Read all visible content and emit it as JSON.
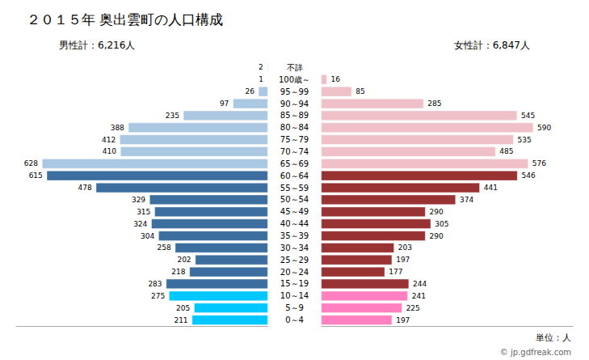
{
  "chart_data": {
    "type": "bar",
    "orientation": "horizontal",
    "title": "２０１５年 奥出雲町の人口構成",
    "categories": [
      "不詳",
      "100歳～",
      "95～99",
      "90～94",
      "85～89",
      "80～84",
      "75～79",
      "70～74",
      "65～69",
      "60～64",
      "55～59",
      "50～54",
      "45～49",
      "40～44",
      "35～39",
      "30～34",
      "25～29",
      "20～24",
      "15～19",
      "10～14",
      "5～9",
      "0～4"
    ],
    "series": [
      {
        "name": "男性計：6,216人",
        "values": [
          2,
          1,
          26,
          97,
          235,
          388,
          412,
          410,
          628,
          615,
          478,
          329,
          315,
          324,
          304,
          258,
          202,
          218,
          283,
          275,
          205,
          211
        ],
        "colors": [
          "#abc8e2",
          "#abc8e2",
          "#abc8e2",
          "#abc8e2",
          "#abc8e2",
          "#abc8e2",
          "#abc8e2",
          "#abc8e2",
          "#abc8e2",
          "#3c6fa0",
          "#3c6fa0",
          "#3c6fa0",
          "#3c6fa0",
          "#3c6fa0",
          "#3c6fa0",
          "#3c6fa0",
          "#3c6fa0",
          "#3c6fa0",
          "#3c6fa0",
          "#00c8ff",
          "#00c8ff",
          "#00c8ff"
        ]
      },
      {
        "name": "女性計：6,847人",
        "values": [
          0,
          16,
          85,
          285,
          545,
          590,
          535,
          485,
          576,
          546,
          441,
          374,
          290,
          305,
          290,
          203,
          197,
          177,
          244,
          241,
          225,
          197
        ],
        "colors": [
          "#f0c0c8",
          "#f0c0c8",
          "#f0c0c8",
          "#f0c0c8",
          "#f0c0c8",
          "#f0c0c8",
          "#f0c0c8",
          "#f0c0c8",
          "#f0c0c8",
          "#993333",
          "#993333",
          "#993333",
          "#993333",
          "#993333",
          "#993333",
          "#993333",
          "#993333",
          "#993333",
          "#993333",
          "#ff80c0",
          "#ff80c0",
          "#ff80c0"
        ]
      }
    ],
    "xlim": [
      0,
      700
    ],
    "tick_labels": "y",
    "data_labels": true,
    "grid": false,
    "annotations": [
      "単位：人",
      "© jp.gdfreak.com"
    ]
  }
}
